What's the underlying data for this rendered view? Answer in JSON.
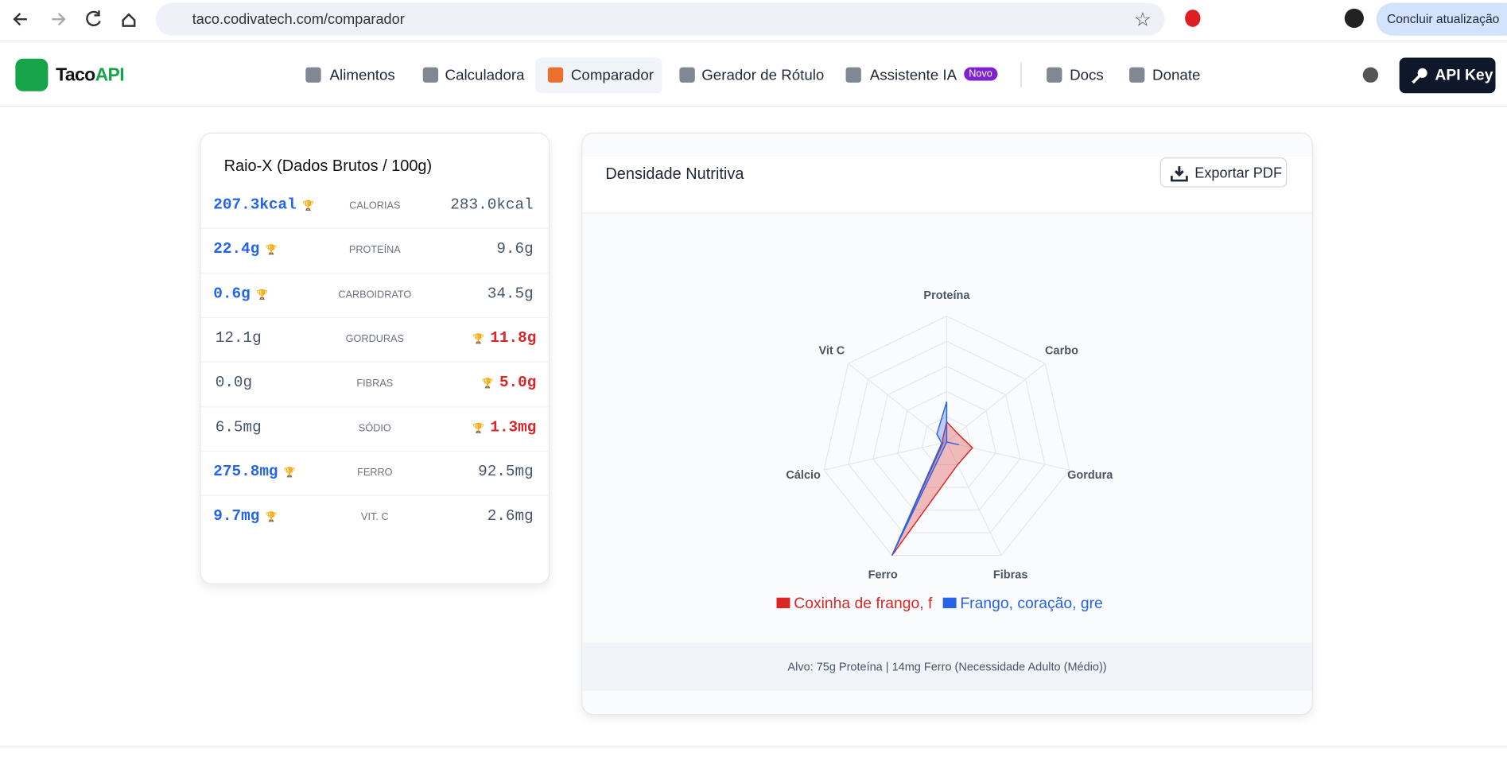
{
  "browser": {
    "url": "taco.codivatech.com/comparador",
    "update_button": "Concluir atualização"
  },
  "navbar": {
    "logo": {
      "text": "Taco",
      "accent": "API"
    },
    "items": [
      "Alimentos",
      "Calculadora",
      "Comparador",
      "Gerador de Rótulo",
      "Assistente IA",
      "Docs",
      "Donate"
    ],
    "active": 2,
    "badge": "Novo",
    "api_key": "API Key"
  },
  "raw_table": {
    "title": "Raio-X (Dados Brutos / 100g)",
    "rows": [
      {
        "left": "207.3kcal",
        "label": "CALORIAS",
        "right": "283.0kcal",
        "winner": "left"
      },
      {
        "left": "22.4g",
        "label": "PROTEÍNA",
        "right": "9.6g",
        "winner": "left"
      },
      {
        "left": "0.6g",
        "label": "CARBOIDRATO",
        "right": "34.5g",
        "winner": "left"
      },
      {
        "left": "12.1g",
        "label": "GORDURAS",
        "right": "11.8g",
        "winner": "right"
      },
      {
        "left": "0.0g",
        "label": "FIBRAS",
        "right": "5.0g",
        "winner": "right"
      },
      {
        "left": "6.5mg",
        "label": "SÓDIO",
        "right": "1.3mg",
        "winner": "right"
      },
      {
        "left": "275.8mg",
        "label": "FERRO",
        "right": "92.5mg",
        "winner": "left"
      },
      {
        "left": "9.7mg",
        "label": "VIT. C",
        "right": "2.6mg",
        "winner": "left"
      }
    ]
  },
  "chart_data": {
    "type": "radar",
    "title": "Densidade Nutritiva",
    "export_button": "Exportar PDF",
    "axes": [
      "Proteína",
      "Carbo",
      "Gordura",
      "Fibras",
      "Ferro",
      "Cálcio",
      "Vit C"
    ],
    "rlim": [
      0,
      100
    ],
    "rticks": [
      20,
      40,
      60,
      80,
      100
    ],
    "grid": true,
    "series": [
      {
        "name": "Coxinha de frango, f",
        "color": "#dc2626",
        "values": [
          16,
          11,
          21,
          20,
          100,
          3,
          4
        ]
      },
      {
        "name": "Frango, coração, gre",
        "color": "#2563eb",
        "values": [
          32,
          0,
          10,
          0,
          100,
          4,
          10
        ]
      }
    ],
    "footer": "Alvo: 75g Proteína | 14mg Ferro (Necessidade Adulto (Médio))"
  }
}
